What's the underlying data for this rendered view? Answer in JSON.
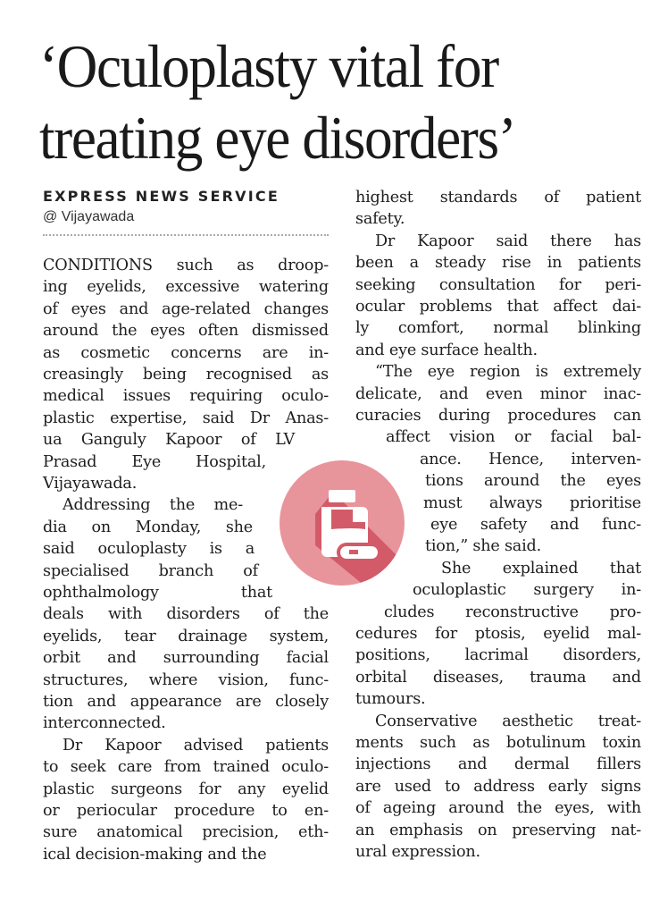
{
  "headline": {
    "line1": "‘Oculoplasty vital for",
    "line2": "treating eye disorders’"
  },
  "byline": "EXPRESS NEWS SERVICE",
  "dateline": "@ Vijayawada",
  "icon": {
    "name": "medicine-bottle-pill-icon",
    "color": "#d9606e",
    "bg": "#e8949b"
  },
  "columns": [
    {
      "paragraphs": [
        {
          "lines": [
            "CONDITIONS such as droop-",
            "ing eyelids, excessive watering",
            "of eyes and age-related changes",
            "around the eyes often dismissed",
            "as cosmetic concerns are in-",
            "creasingly being recognised as",
            "medical issues requiring oculo-",
            "plastic expertise, said Dr Anas-",
            "ua Ganguly Kapoor of LV",
            "Prasad Eye Hospital,",
            "Vijayawada."
          ]
        },
        {
          "lines": [
            "Addressing the me-",
            "dia on Monday, she",
            "said oculoplasty is a",
            "specialised branch of",
            "ophthalmology that",
            "deals with disorders of the",
            "eyelids, tear drainage system,",
            "orbit and surrounding facial",
            "structures, where vision, func-",
            "tion and appearance are closely",
            "interconnected."
          ]
        },
        {
          "lines": [
            "Dr Kapoor advised patients",
            "to seek care from trained oculo-",
            "plastic surgeons for any eyelid",
            "or periocular procedure to en-",
            "sure anatomical precision, eth-",
            "ical decision-making and the"
          ]
        }
      ]
    },
    {
      "paragraphs": [
        {
          "lines": [
            "highest standards of patient",
            "safety."
          ]
        },
        {
          "lines": [
            "Dr Kapoor said there has",
            "been a steady rise in patients",
            "seeking consultation for peri-",
            "ocular problems that affect dai-",
            "ly comfort, normal blinking",
            "and eye surface health."
          ]
        },
        {
          "lines": [
            "“The eye region is extremely",
            "delicate, and even minor inac-",
            "curacies during procedures can",
            "affect vision or facial bal-",
            "ance. Hence, interven-",
            "tions around the eyes",
            "must always prioritise",
            "eye safety and func-",
            "tion,” she said."
          ]
        },
        {
          "lines": [
            "She explained that",
            "oculoplastic surgery in-",
            "cludes reconstructive pro-",
            "cedures for ptosis, eyelid mal-",
            "positions, lacrimal disorders,",
            "orbital diseases, trauma and",
            "tumours."
          ]
        },
        {
          "lines": [
            "Conservative aesthetic treat-",
            "ments such as botulinum toxin",
            "injections and dermal fillers",
            "are used to address early signs",
            "of ageing around the eyes, with",
            "an emphasis on preserving nat-",
            "ural expression."
          ]
        }
      ]
    }
  ]
}
